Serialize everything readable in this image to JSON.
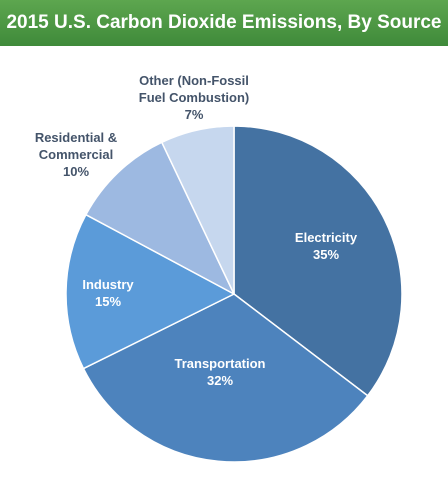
{
  "title": "2015 U.S. Carbon Dioxide Emissions, By Source",
  "chart_data": {
    "type": "pie",
    "title": "2015 U.S. Carbon Dioxide Emissions, By Source",
    "slices": [
      {
        "label_lines": [
          "Electricity"
        ],
        "pct_text": "35%",
        "value": 35,
        "color": "#4472a2"
      },
      {
        "label_lines": [
          "Transportation"
        ],
        "pct_text": "32%",
        "value": 32,
        "color": "#4d83bd"
      },
      {
        "label_lines": [
          "Industry"
        ],
        "pct_text": "15%",
        "value": 15,
        "color": "#5b9bd9"
      },
      {
        "label_lines": [
          "Residential &",
          "Commercial"
        ],
        "pct_text": "10%",
        "value": 10,
        "color": "#9db9e1"
      },
      {
        "label_lines": [
          "Other (Non-Fossil",
          "Fuel Combustion)"
        ],
        "pct_text": "7%",
        "value": 7,
        "color": "#c6d7ee"
      }
    ],
    "label_colors": {
      "inside": "#ffffff",
      "outside": "#44546a"
    }
  }
}
